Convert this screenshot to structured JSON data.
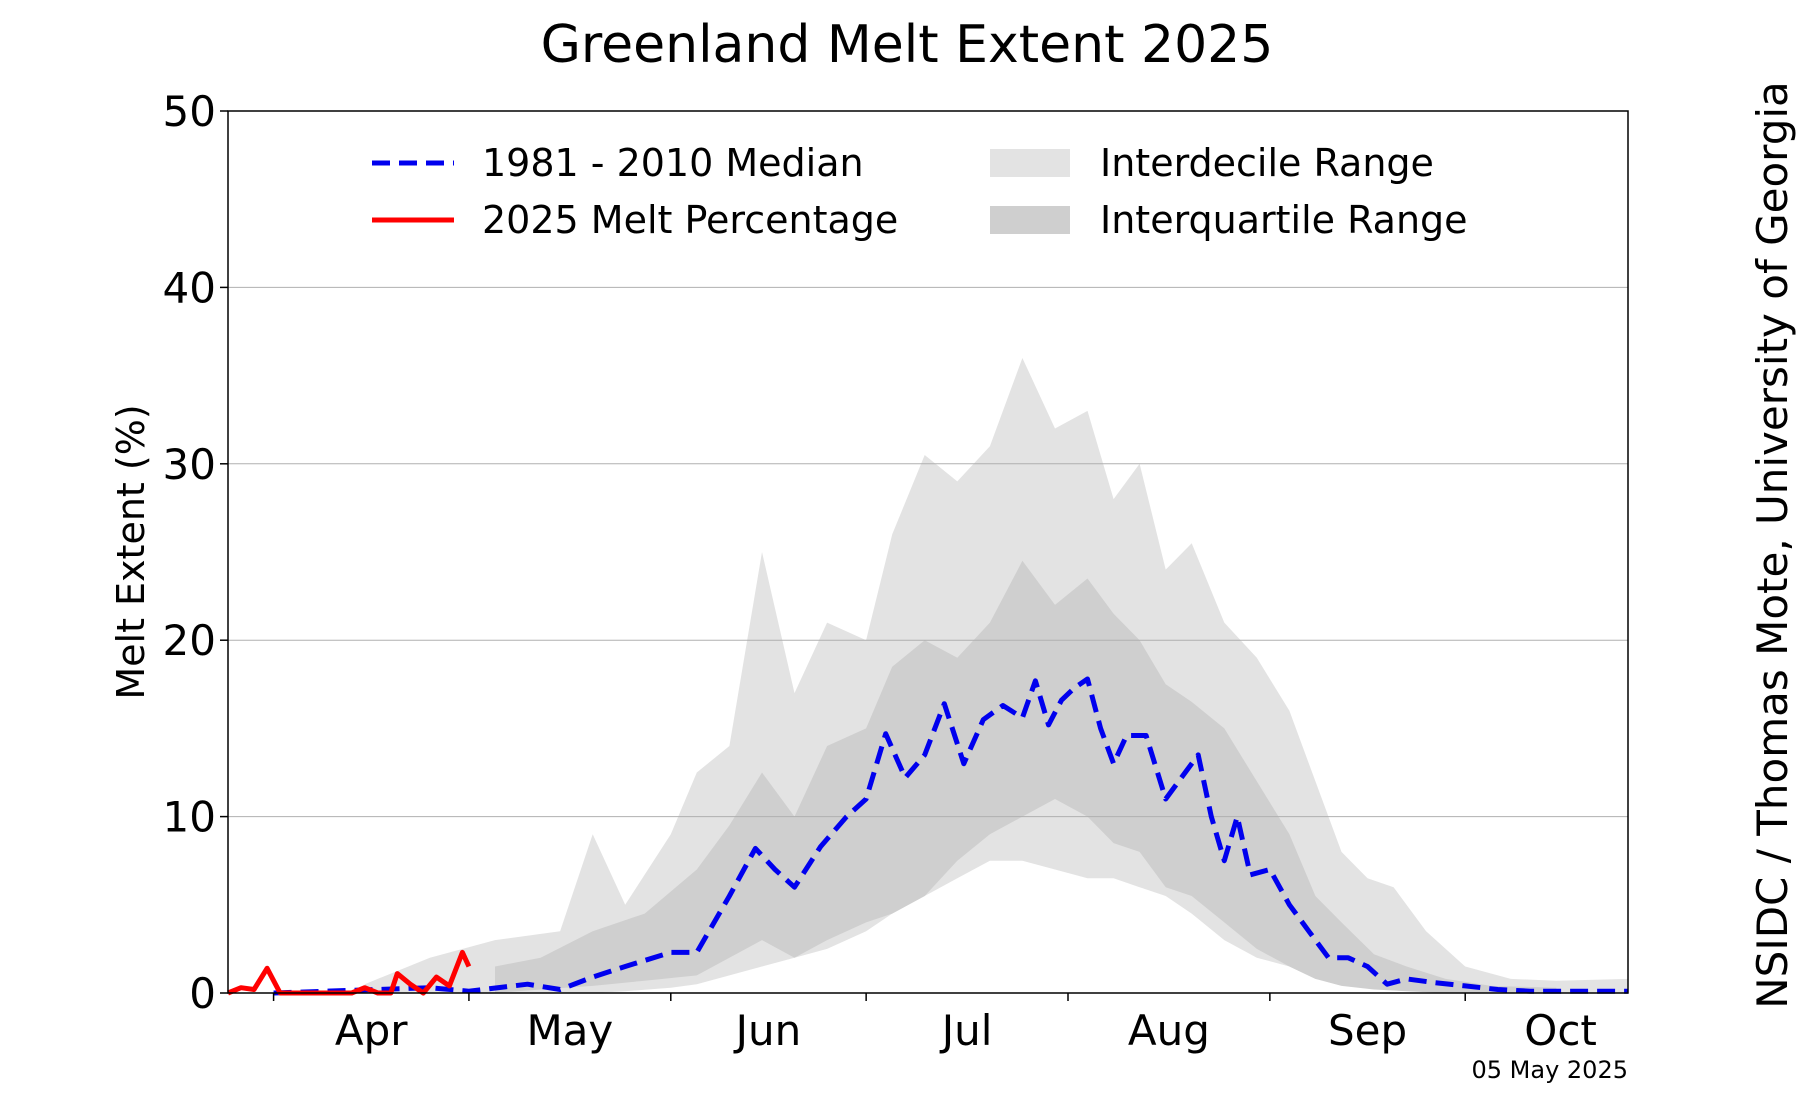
{
  "chart_data": {
    "type": "line",
    "title": "Greenland Melt Extent 2025",
    "xlabel": "",
    "ylabel": "Melt Extent (%)",
    "ylim": [
      0,
      50
    ],
    "yticks": [
      0,
      10,
      20,
      30,
      40,
      50
    ],
    "xlim": [
      "2025-03-25",
      "2025-10-26"
    ],
    "xticks": [
      {
        "label": "Apr",
        "date": "2025-04-01"
      },
      {
        "label": "May",
        "date": "2025-05-01"
      },
      {
        "label": "Jun",
        "date": "2025-06-01"
      },
      {
        "label": "Jul",
        "date": "2025-07-01"
      },
      {
        "label": "Aug",
        "date": "2025-08-01"
      },
      {
        "label": "Sep",
        "date": "2025-09-01"
      },
      {
        "label": "Oct",
        "date": "2025-10-01"
      }
    ],
    "grid": {
      "horizontal": true,
      "vertical": false
    },
    "legend_position": "top",
    "legend": [
      {
        "label": "1981 - 2010 Median",
        "style": "dashed-line",
        "color": "#0000ee"
      },
      {
        "label": "2025 Melt Percentage",
        "style": "solid-line",
        "color": "#ff0000"
      },
      {
        "label": "Interdecile Range",
        "style": "band",
        "color": "#e3e3e3"
      },
      {
        "label": "Interquartile Range",
        "style": "band",
        "color": "#cfcfcf"
      }
    ],
    "series": [
      {
        "name": "1981 - 2010 Median",
        "color": "#0000ee",
        "points": [
          [
            "2025-04-01",
            0
          ],
          [
            "2025-04-25",
            0.3
          ],
          [
            "2025-05-01",
            0.1
          ],
          [
            "2025-05-10",
            0.5
          ],
          [
            "2025-05-15",
            0.2
          ],
          [
            "2025-05-20",
            0.9
          ],
          [
            "2025-05-25",
            1.5
          ],
          [
            "2025-06-01",
            2.3
          ],
          [
            "2025-06-05",
            2.3
          ],
          [
            "2025-06-10",
            5.5
          ],
          [
            "2025-06-14",
            8.2
          ],
          [
            "2025-06-17",
            7.0
          ],
          [
            "2025-06-20",
            6.0
          ],
          [
            "2025-06-24",
            8.3
          ],
          [
            "2025-06-28",
            10.0
          ],
          [
            "2025-07-01",
            11.0
          ],
          [
            "2025-07-04",
            14.7
          ],
          [
            "2025-07-07",
            12.2
          ],
          [
            "2025-07-10",
            13.5
          ],
          [
            "2025-07-13",
            16.4
          ],
          [
            "2025-07-16",
            13.0
          ],
          [
            "2025-07-19",
            15.5
          ],
          [
            "2025-07-22",
            16.3
          ],
          [
            "2025-07-25",
            15.6
          ],
          [
            "2025-07-27",
            17.7
          ],
          [
            "2025-07-29",
            15.2
          ],
          [
            "2025-07-31",
            16.6
          ],
          [
            "2025-08-02",
            17.3
          ],
          [
            "2025-08-04",
            17.8
          ],
          [
            "2025-08-06",
            15.0
          ],
          [
            "2025-08-08",
            13.0
          ],
          [
            "2025-08-10",
            14.6
          ],
          [
            "2025-08-13",
            14.6
          ],
          [
            "2025-08-16",
            11.0
          ],
          [
            "2025-08-19",
            12.5
          ],
          [
            "2025-08-21",
            13.5
          ],
          [
            "2025-08-23",
            10.0
          ],
          [
            "2025-08-25",
            7.5
          ],
          [
            "2025-08-27",
            10.0
          ],
          [
            "2025-08-29",
            6.7
          ],
          [
            "2025-09-01",
            7.0
          ],
          [
            "2025-09-04",
            5.0
          ],
          [
            "2025-09-07",
            3.5
          ],
          [
            "2025-09-10",
            2.0
          ],
          [
            "2025-09-13",
            2.0
          ],
          [
            "2025-09-16",
            1.5
          ],
          [
            "2025-09-19",
            0.5
          ],
          [
            "2025-09-22",
            0.8
          ],
          [
            "2025-09-26",
            0.6
          ],
          [
            "2025-10-01",
            0.4
          ],
          [
            "2025-10-06",
            0.2
          ],
          [
            "2025-10-11",
            0.1
          ],
          [
            "2025-10-16",
            0.1
          ],
          [
            "2025-10-26",
            0.1
          ]
        ]
      },
      {
        "name": "2025 Melt Percentage",
        "color": "#ff0000",
        "points": [
          [
            "2025-03-25",
            0
          ],
          [
            "2025-03-27",
            0.3
          ],
          [
            "2025-03-29",
            0.2
          ],
          [
            "2025-03-31",
            1.4
          ],
          [
            "2025-04-02",
            0
          ],
          [
            "2025-04-06",
            0
          ],
          [
            "2025-04-10",
            0
          ],
          [
            "2025-04-13",
            0
          ],
          [
            "2025-04-15",
            0.3
          ],
          [
            "2025-04-17",
            0
          ],
          [
            "2025-04-19",
            0
          ],
          [
            "2025-04-20",
            1.1
          ],
          [
            "2025-04-22",
            0.5
          ],
          [
            "2025-04-24",
            0
          ],
          [
            "2025-04-26",
            0.9
          ],
          [
            "2025-04-28",
            0.4
          ],
          [
            "2025-04-30",
            2.3
          ],
          [
            "2025-05-01",
            1.5
          ]
        ]
      }
    ],
    "bands": [
      {
        "name": "Interdecile Range",
        "color": "#e3e3e3",
        "points": [
          [
            "2025-04-15",
            0,
            0.5
          ],
          [
            "2025-04-25",
            0,
            2.0
          ],
          [
            "2025-05-05",
            0,
            3.0
          ],
          [
            "2025-05-15",
            0,
            3.5
          ],
          [
            "2025-05-20",
            0,
            9.0
          ],
          [
            "2025-05-25",
            0.1,
            5.0
          ],
          [
            "2025-06-01",
            0.3,
            9.0
          ],
          [
            "2025-06-05",
            0.5,
            12.5
          ],
          [
            "2025-06-10",
            1.0,
            14.0
          ],
          [
            "2025-06-15",
            1.5,
            25.0
          ],
          [
            "2025-06-20",
            2.0,
            17.0
          ],
          [
            "2025-06-25",
            2.5,
            21.0
          ],
          [
            "2025-07-01",
            3.5,
            20.0
          ],
          [
            "2025-07-05",
            4.5,
            26.0
          ],
          [
            "2025-07-10",
            5.5,
            30.5
          ],
          [
            "2025-07-15",
            6.5,
            29.0
          ],
          [
            "2025-07-20",
            7.5,
            31.0
          ],
          [
            "2025-07-25",
            7.5,
            36.0
          ],
          [
            "2025-07-30",
            7.0,
            32.0
          ],
          [
            "2025-08-04",
            6.5,
            33.0
          ],
          [
            "2025-08-08",
            6.5,
            28.0
          ],
          [
            "2025-08-12",
            6.0,
            30.0
          ],
          [
            "2025-08-16",
            5.5,
            24.0
          ],
          [
            "2025-08-20",
            4.5,
            25.5
          ],
          [
            "2025-08-25",
            3.0,
            21.0
          ],
          [
            "2025-08-30",
            2.0,
            19.0
          ],
          [
            "2025-09-04",
            1.5,
            16.0
          ],
          [
            "2025-09-08",
            0.8,
            12.0
          ],
          [
            "2025-09-12",
            0.5,
            8.0
          ],
          [
            "2025-09-16",
            0.3,
            6.5
          ],
          [
            "2025-09-20",
            0.2,
            6.0
          ],
          [
            "2025-09-25",
            0.1,
            3.5
          ],
          [
            "2025-10-01",
            0,
            1.5
          ],
          [
            "2025-10-08",
            0,
            0.8
          ],
          [
            "2025-10-15",
            0,
            0.7
          ],
          [
            "2025-10-26",
            0,
            0.8
          ]
        ]
      },
      {
        "name": "Interquartile Range",
        "color": "#cfcfcf",
        "points": [
          [
            "2025-05-05",
            0,
            1.5
          ],
          [
            "2025-05-12",
            0.2,
            2.0
          ],
          [
            "2025-05-20",
            0.4,
            3.5
          ],
          [
            "2025-05-28",
            0.7,
            4.5
          ],
          [
            "2025-06-05",
            1.0,
            7.0
          ],
          [
            "2025-06-10",
            2.0,
            9.5
          ],
          [
            "2025-06-15",
            3.0,
            12.5
          ],
          [
            "2025-06-20",
            2.0,
            10.0
          ],
          [
            "2025-06-25",
            3.0,
            14.0
          ],
          [
            "2025-07-01",
            4.0,
            15.0
          ],
          [
            "2025-07-05",
            4.5,
            18.5
          ],
          [
            "2025-07-10",
            5.5,
            20.0
          ],
          [
            "2025-07-15",
            7.5,
            19.0
          ],
          [
            "2025-07-20",
            9.0,
            21.0
          ],
          [
            "2025-07-25",
            10.0,
            24.5
          ],
          [
            "2025-07-30",
            11.0,
            22.0
          ],
          [
            "2025-08-04",
            10.0,
            23.5
          ],
          [
            "2025-08-08",
            8.5,
            21.5
          ],
          [
            "2025-08-12",
            8.0,
            20.0
          ],
          [
            "2025-08-16",
            6.0,
            17.5
          ],
          [
            "2025-08-20",
            5.5,
            16.5
          ],
          [
            "2025-08-25",
            4.0,
            15.0
          ],
          [
            "2025-08-30",
            2.5,
            12.0
          ],
          [
            "2025-09-04",
            1.5,
            9.0
          ],
          [
            "2025-09-08",
            0.8,
            5.5
          ],
          [
            "2025-09-12",
            0.4,
            4.0
          ],
          [
            "2025-09-17",
            0.2,
            2.2
          ],
          [
            "2025-09-22",
            0.1,
            1.5
          ],
          [
            "2025-09-28",
            0,
            0.8
          ],
          [
            "2025-10-05",
            0,
            0.4
          ],
          [
            "2025-10-15",
            0,
            0.3
          ]
        ]
      }
    ],
    "date_stamp": "05 May 2025",
    "credit": "NSIDC / Thomas Mote, University of Georgia"
  }
}
